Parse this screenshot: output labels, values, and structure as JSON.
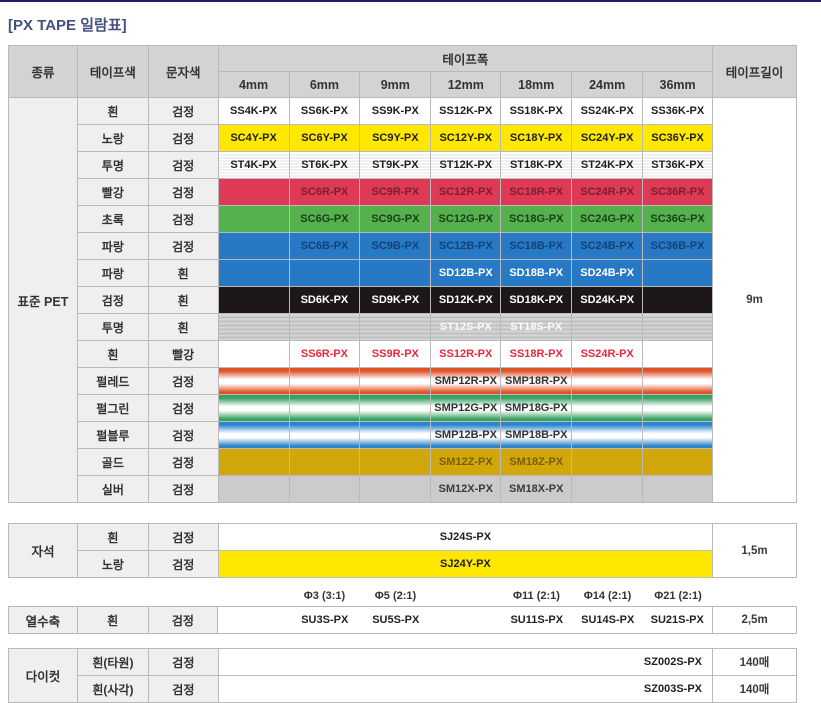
{
  "page": {
    "title": "[PX TAPE 일람표]"
  },
  "colors": {
    "accent_bar": "#221c72",
    "title_text": "#44517e",
    "header_bg": "#d3d3d3",
    "label_bg": "#efefef",
    "yellow": "#ffe800",
    "red": "#de3a55",
    "green": "#55b04e",
    "blue": "#2879c5",
    "black_tape": "#1e1717",
    "gold": "#d2a70b",
    "silver": "#cbcbcb",
    "pearl_red": "#df5127",
    "pearl_green": "#35a05f",
    "pearl_blue": "#2b84cc",
    "red_text": "#e8273d"
  },
  "main_table": {
    "headers": {
      "type": "종류",
      "tape_color": "테이프색",
      "text_color": "문자색",
      "tape_width": "테이프폭",
      "tape_length": "테이프길이",
      "widths": [
        "4mm",
        "6mm",
        "9mm",
        "12mm",
        "18mm",
        "24mm",
        "36mm"
      ]
    },
    "group_label": "표준 PET",
    "length": "9m",
    "rows": [
      {
        "tape_color": "흰",
        "text_color": "검정",
        "style": "white-black",
        "cells": [
          "SS4K-PX",
          "SS6K-PX",
          "SS9K-PX",
          "SS12K-PX",
          "SS18K-PX",
          "SS24K-PX",
          "SS36K-PX"
        ]
      },
      {
        "tape_color": "노랑",
        "text_color": "검정",
        "style": "yellow-black",
        "cells": [
          "SC4Y-PX",
          "SC6Y-PX",
          "SC9Y-PX",
          "SC12Y-PX",
          "SC18Y-PX",
          "SC24Y-PX",
          "SC36Y-PX"
        ]
      },
      {
        "tape_color": "투명",
        "text_color": "검정",
        "style": "clear-black",
        "cells": [
          "ST4K-PX",
          "ST6K-PX",
          "ST9K-PX",
          "ST12K-PX",
          "ST18K-PX",
          "ST24K-PX",
          "ST36K-PX"
        ]
      },
      {
        "tape_color": "빨강",
        "text_color": "검정",
        "style": "red-black",
        "cells": [
          "",
          "SC6R-PX",
          "SC9R-PX",
          "SC12R-PX",
          "SC18R-PX",
          "SC24R-PX",
          "SC36R-PX"
        ]
      },
      {
        "tape_color": "초록",
        "text_color": "검정",
        "style": "green-black",
        "cells": [
          "",
          "SC6G-PX",
          "SC9G-PX",
          "SC12G-PX",
          "SC18G-PX",
          "SC24G-PX",
          "SC36G-PX"
        ]
      },
      {
        "tape_color": "파랑",
        "text_color": "검정",
        "style": "blue-black",
        "cells": [
          "",
          "SC6B-PX",
          "SC9B-PX",
          "SC12B-PX",
          "SC18B-PX",
          "SC24B-PX",
          "SC36B-PX"
        ]
      },
      {
        "tape_color": "파랑",
        "text_color": "흰",
        "style": "blue-white",
        "cells": [
          "",
          "",
          "",
          "SD12B-PX",
          "SD18B-PX",
          "SD24B-PX",
          ""
        ]
      },
      {
        "tape_color": "검정",
        "text_color": "흰",
        "style": "black-white",
        "cells": [
          "",
          "SD6K-PX",
          "SD9K-PX",
          "SD12K-PX",
          "SD18K-PX",
          "SD24K-PX",
          ""
        ]
      },
      {
        "tape_color": "투명",
        "text_color": "흰",
        "style": "clear-white",
        "cells": [
          "",
          "",
          "",
          "ST12S-PX",
          "ST18S-PX",
          "",
          ""
        ]
      },
      {
        "tape_color": "흰",
        "text_color": "빨강",
        "style": "white-red",
        "cells": [
          "",
          "SS6R-PX",
          "SS9R-PX",
          "SS12R-PX",
          "SS18R-PX",
          "SS24R-PX",
          ""
        ]
      },
      {
        "tape_color": "펄레드",
        "text_color": "검정",
        "style": "pearl-red",
        "cells": [
          "",
          "",
          "",
          "SMP12R-PX",
          "SMP18R-PX",
          "",
          ""
        ]
      },
      {
        "tape_color": "펄그린",
        "text_color": "검정",
        "style": "pearl-green",
        "cells": [
          "",
          "",
          "",
          "SMP12G-PX",
          "SMP18G-PX",
          "",
          ""
        ]
      },
      {
        "tape_color": "펄블루",
        "text_color": "검정",
        "style": "pearl-blue",
        "cells": [
          "",
          "",
          "",
          "SMP12B-PX",
          "SMP18B-PX",
          "",
          ""
        ]
      },
      {
        "tape_color": "골드",
        "text_color": "검정",
        "style": "gold-black",
        "cells": [
          "",
          "",
          "",
          "SM12Z-PX",
          "SM18Z-PX",
          "",
          ""
        ]
      },
      {
        "tape_color": "실버",
        "text_color": "검정",
        "style": "silver-black",
        "cells": [
          "",
          "",
          "",
          "SM12X-PX",
          "SM18X-PX",
          "",
          ""
        ]
      }
    ]
  },
  "magnet_table": {
    "group_label": "자석",
    "length": "1,5m",
    "rows": [
      {
        "tape_color": "흰",
        "text_color": "검정",
        "style": "white-black",
        "code": "SJ24S-PX"
      },
      {
        "tape_color": "노랑",
        "text_color": "검정",
        "style": "yellow-black",
        "code": "SJ24Y-PX"
      }
    ]
  },
  "shrink_table": {
    "group_label": "열수축",
    "tape_color": "흰",
    "text_color": "검정",
    "length": "2,5m",
    "phi_labels": [
      "Φ3 (3:1)",
      "Φ5 (2:1)",
      "Φ11 (2:1)",
      "Φ14 (2:1)",
      "Φ21 (2:1)"
    ],
    "codes": [
      "SU3S-PX",
      "SU5S-PX",
      "SU11S-PX",
      "SU14S-PX",
      "SU21S-PX"
    ],
    "columns": [
      5,
      6,
      8,
      9,
      10
    ]
  },
  "diecut_table": {
    "group_label": "다이컷",
    "rows": [
      {
        "tape_color": "흰(타원)",
        "text_color": "검정",
        "code": "SZ002S-PX",
        "length": "140매"
      },
      {
        "tape_color": "흰(사각)",
        "text_color": "검정",
        "code": "SZ003S-PX",
        "length": "140매"
      }
    ]
  }
}
